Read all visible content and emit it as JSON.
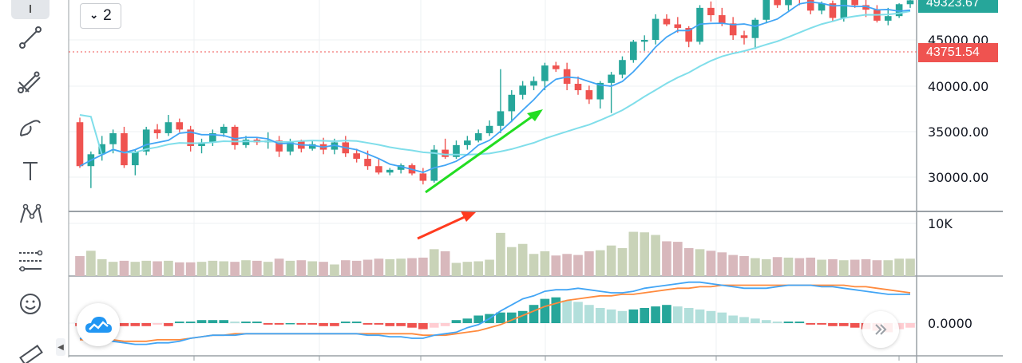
{
  "interval": {
    "label": "2",
    "icon": "chevron-down-icon"
  },
  "toolbar": {
    "tools": [
      "cursor-icon",
      "trend-line-icon",
      "pitchfork-icon",
      "brush-icon",
      "text-icon",
      "pattern-icon",
      "measure-icon",
      "emoji-icon",
      "ruler-icon"
    ]
  },
  "price_axis": {
    "labels": [
      "45000.00",
      "40000.00",
      "35000.00",
      "30000.00"
    ],
    "last_price": "49323.67",
    "last_price_color": "#26a69a",
    "crosshair_price": "43751.54",
    "crosshair_color": "#ef5350"
  },
  "volume_axis": {
    "labels": [
      "10K"
    ]
  },
  "macd_axis": {
    "labels": [
      "0.0000"
    ]
  },
  "colors": {
    "up": "#26a69a",
    "down": "#ef5350",
    "ma_fast": "#42a5f5",
    "ma_slow": "#80deea",
    "vol_up": "#c9d3b8",
    "vol_down": "#d8b8bc",
    "macd_line": "#42a5f5",
    "signal_line": "#ff8a3d",
    "arrow_up": "#22dd22",
    "arrow_vol": "#ff3b1f"
  },
  "chart_data": {
    "type": "candlestick",
    "ylim": [
      27000,
      50000
    ],
    "candles": [
      [
        36000,
        36500,
        31000,
        31200
      ],
      [
        31200,
        32800,
        28800,
        32500
      ],
      [
        32500,
        34500,
        31800,
        33600
      ],
      [
        33600,
        35200,
        32600,
        34800
      ],
      [
        34800,
        35500,
        31000,
        31300
      ],
      [
        31300,
        33000,
        30200,
        32800
      ],
      [
        32800,
        35500,
        32400,
        35200
      ],
      [
        35200,
        35800,
        34200,
        34800
      ],
      [
        34800,
        36800,
        34500,
        36000
      ],
      [
        36000,
        36400,
        34900,
        35200
      ],
      [
        35200,
        35600,
        32800,
        33400
      ],
      [
        33400,
        34200,
        32600,
        33800
      ],
      [
        33800,
        35200,
        33400,
        34800
      ],
      [
        34800,
        35800,
        34400,
        35500
      ],
      [
        35500,
        35700,
        33000,
        33500
      ],
      [
        33500,
        34500,
        33200,
        34100
      ],
      [
        34100,
        34300,
        33500,
        33800
      ],
      [
        33800,
        34900,
        33100,
        34000
      ],
      [
        34000,
        34500,
        32200,
        32800
      ],
      [
        32800,
        34200,
        32400,
        33900
      ],
      [
        33900,
        34100,
        32700,
        33100
      ],
      [
        33100,
        34000,
        32900,
        33600
      ],
      [
        33600,
        34300,
        32500,
        33000
      ],
      [
        33000,
        34200,
        32500,
        33800
      ],
      [
        33800,
        34500,
        32200,
        32600
      ],
      [
        32600,
        33100,
        31600,
        32000
      ],
      [
        32000,
        32900,
        30800,
        31200
      ],
      [
        31200,
        32000,
        30300,
        30500
      ],
      [
        30500,
        31000,
        30200,
        30800
      ],
      [
        30800,
        31500,
        30400,
        31300
      ],
      [
        31300,
        31500,
        30200,
        30400
      ],
      [
        30400,
        31000,
        29200,
        29600
      ],
      [
        29600,
        33500,
        29400,
        33000
      ],
      [
        33000,
        34200,
        32000,
        32200
      ],
      [
        32200,
        34000,
        32000,
        33500
      ],
      [
        33500,
        34500,
        33000,
        34000
      ],
      [
        34000,
        35200,
        33800,
        34800
      ],
      [
        34800,
        36200,
        34500,
        35600
      ],
      [
        35600,
        41800,
        34800,
        37200
      ],
      [
        37200,
        39500,
        36000,
        39000
      ],
      [
        39000,
        40500,
        38500,
        40000
      ],
      [
        40000,
        41000,
        39500,
        40500
      ],
      [
        40500,
        42500,
        39500,
        42200
      ],
      [
        42200,
        42600,
        41500,
        41800
      ],
      [
        41800,
        42500,
        39500,
        40200
      ],
      [
        40200,
        41000,
        39000,
        39500
      ],
      [
        39500,
        40000,
        38000,
        38500
      ],
      [
        38500,
        40500,
        37500,
        40300
      ],
      [
        40300,
        41500,
        37000,
        41200
      ],
      [
        41200,
        43200,
        40800,
        42800
      ],
      [
        42800,
        45000,
        42500,
        44800
      ],
      [
        44800,
        45500,
        43800,
        45000
      ],
      [
        45000,
        47800,
        44500,
        47300
      ],
      [
        47300,
        47800,
        46500,
        46700
      ],
      [
        46700,
        47500,
        45800,
        46300
      ],
      [
        46300,
        46500,
        44200,
        44800
      ],
      [
        44800,
        48800,
        44500,
        48500
      ],
      [
        48500,
        49200,
        47000,
        47700
      ],
      [
        47700,
        48500,
        46500,
        46800
      ],
      [
        46800,
        47500,
        45000,
        45500
      ],
      [
        45500,
        46000,
        44500,
        45200
      ],
      [
        45200,
        47400,
        44000,
        47200
      ],
      [
        47200,
        49800,
        46800,
        49700
      ],
      [
        49700,
        50000,
        48500,
        48800
      ],
      [
        48800,
        49800,
        48200,
        49600
      ],
      [
        49600,
        50200,
        48800,
        49400
      ],
      [
        49400,
        49800,
        47800,
        48200
      ],
      [
        48200,
        49200,
        47800,
        49000
      ],
      [
        49000,
        49300,
        47000,
        47400
      ],
      [
        47400,
        50000,
        47000,
        49800
      ],
      [
        49800,
        50200,
        48500,
        48800
      ],
      [
        48800,
        49500,
        47500,
        48300
      ],
      [
        48300,
        48800,
        46900,
        47100
      ],
      [
        47100,
        48500,
        46600,
        47600
      ],
      [
        47600,
        49000,
        47400,
        48900
      ],
      [
        48900,
        49500,
        48500,
        49324
      ]
    ],
    "volume": [
      38,
      48,
      32,
      27,
      29,
      27,
      29,
      28,
      29,
      26,
      26,
      27,
      29,
      28,
      27,
      30,
      29,
      27,
      33,
      29,
      30,
      28,
      27,
      22,
      30,
      29,
      31,
      33,
      32,
      33,
      34,
      35,
      51,
      47,
      25,
      27,
      28,
      31,
      82,
      55,
      61,
      42,
      47,
      39,
      42,
      40,
      47,
      49,
      58,
      53,
      84,
      83,
      78,
      66,
      65,
      53,
      51,
      48,
      45,
      40,
      38,
      34,
      32,
      36,
      35,
      34,
      35,
      31,
      32,
      30,
      31,
      32,
      30,
      30,
      33,
      33
    ],
    "macd_hist": [
      -2,
      -3,
      -1,
      -1,
      -2,
      -2,
      -2,
      -1,
      -2,
      1,
      1,
      2,
      2,
      2,
      1,
      1,
      1,
      -1,
      -1,
      0,
      -1,
      -1,
      -2,
      -2,
      1,
      1,
      -1,
      -1,
      -2,
      -2,
      -3,
      -4,
      -3,
      -2,
      2,
      3,
      5,
      6,
      7,
      7,
      8,
      12,
      16,
      17,
      15,
      14,
      12,
      10,
      9,
      8,
      9,
      10,
      11,
      12,
      11,
      10,
      9,
      8,
      7,
      5,
      4,
      3,
      2,
      1,
      1,
      1,
      -1,
      -1,
      -2,
      -2,
      -3,
      -4,
      -5,
      -6,
      -4,
      -3
    ],
    "macd_line": [
      -10,
      -11,
      -11,
      -12,
      -13,
      -14,
      -14,
      -13,
      -13,
      -12,
      -10,
      -9,
      -8,
      -8,
      -8,
      -7,
      -7,
      -7,
      -7,
      -7,
      -7,
      -7,
      -7,
      -7,
      -7,
      -7,
      -8,
      -8,
      -9,
      -9,
      -10,
      -10,
      -8,
      -7,
      -6,
      -3,
      -1,
      3,
      8,
      12,
      16,
      18,
      21,
      22,
      22,
      23,
      22,
      21,
      20,
      20,
      21,
      23,
      24,
      25,
      26,
      27,
      27,
      26,
      25,
      24,
      23,
      23,
      23,
      24,
      25,
      25,
      25,
      24,
      24,
      23,
      22,
      21,
      20,
      19,
      19,
      19
    ],
    "signal_line": [
      -11,
      -11,
      -11,
      -11,
      -12,
      -12,
      -12,
      -11,
      -11,
      -11,
      -10,
      -9,
      -8,
      -8,
      -7,
      -7,
      -7,
      -7,
      -7,
      -7,
      -7,
      -7,
      -7,
      -7,
      -7,
      -7,
      -7,
      -7,
      -7,
      -7,
      -7,
      -8,
      -8,
      -8,
      -7,
      -6,
      -5,
      -3,
      -1,
      2,
      5,
      8,
      11,
      13,
      15,
      16,
      17,
      18,
      18,
      19,
      19,
      20,
      21,
      22,
      23,
      23,
      24,
      24,
      25,
      25,
      25,
      25,
      25,
      25,
      25,
      25,
      25,
      25,
      25,
      25,
      24,
      24,
      23,
      22,
      21,
      20
    ]
  }
}
